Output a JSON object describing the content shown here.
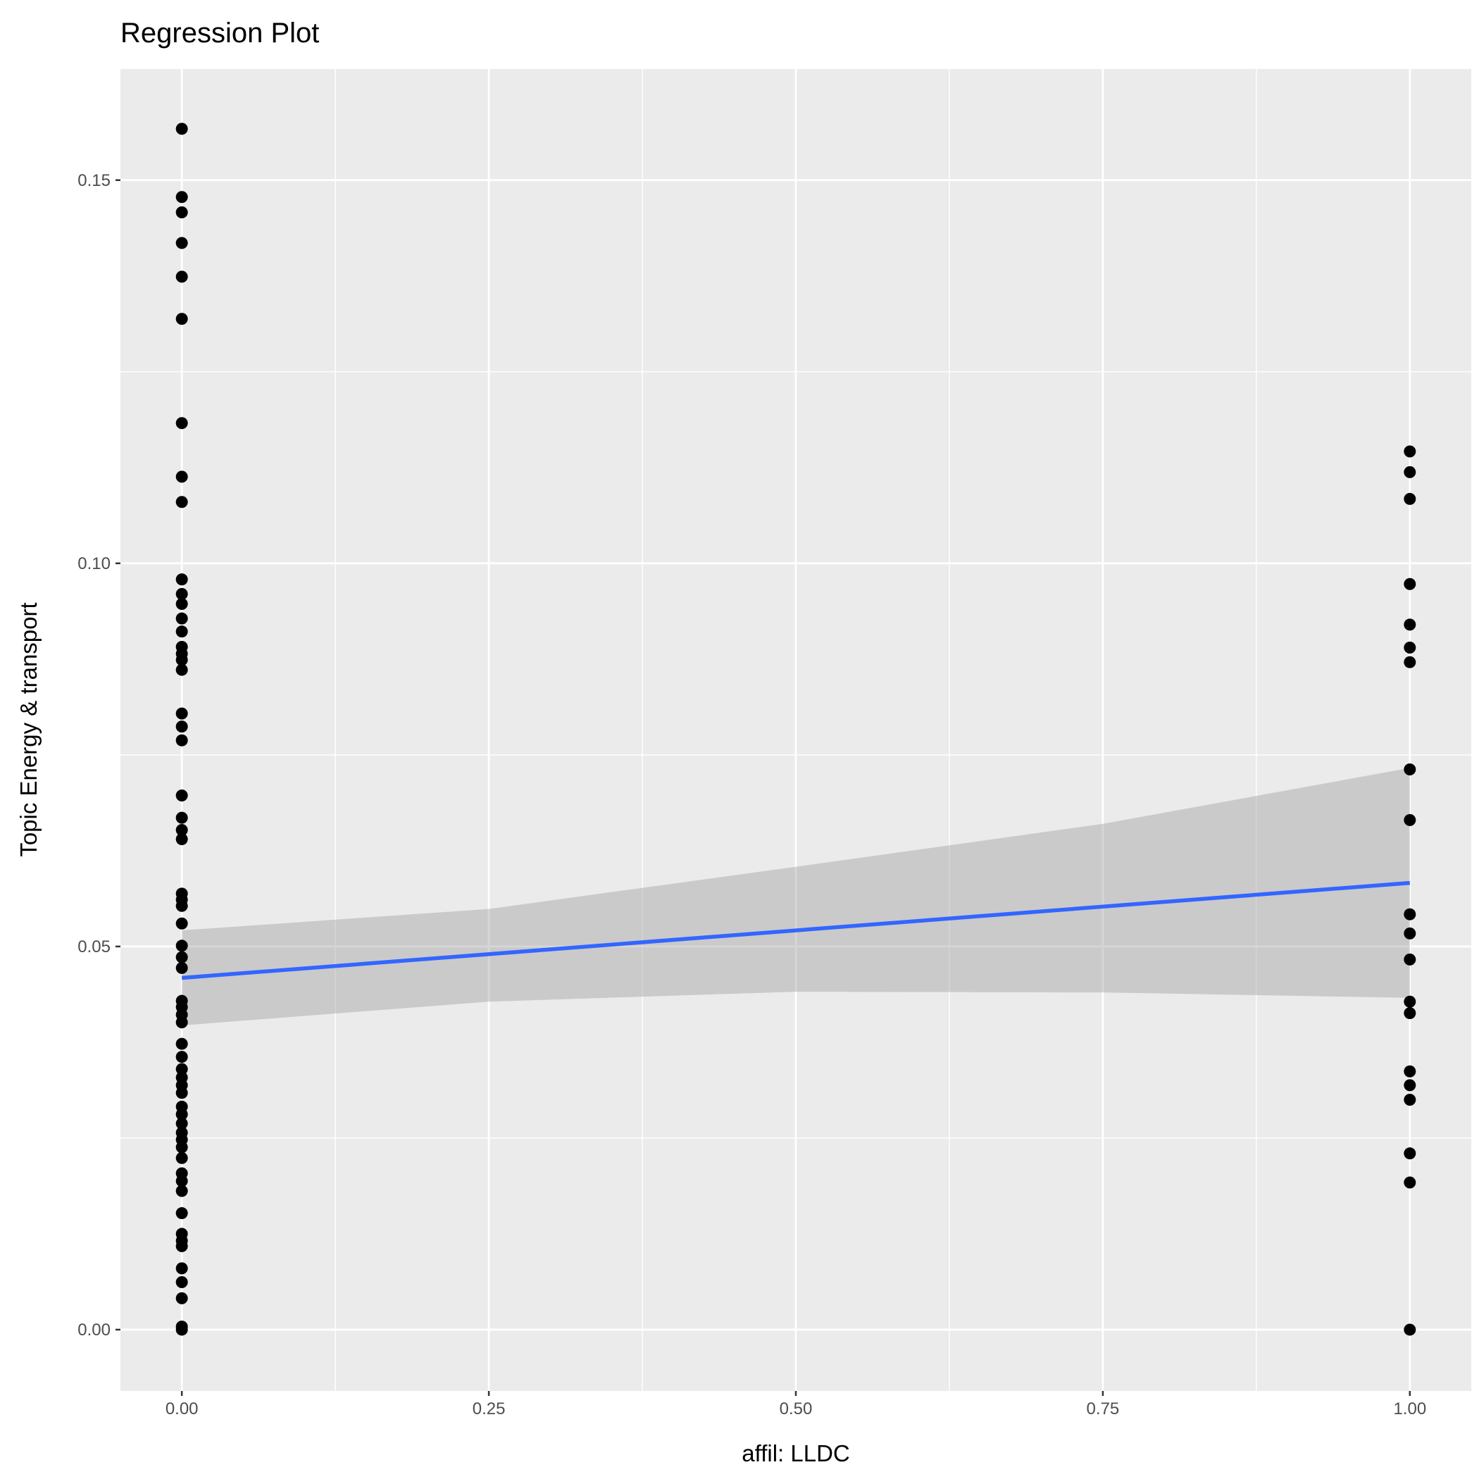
{
  "chart_data": {
    "type": "scatter",
    "title": "Regression Plot",
    "xlabel": "affil: LLDC",
    "ylabel": "Topic Energy & transport",
    "xlim": [
      -0.05,
      1.05
    ],
    "ylim": [
      -0.008,
      0.1645
    ],
    "x_ticks": [
      0,
      0.25,
      0.5,
      0.75,
      1
    ],
    "x_tick_labels": [
      "0.00",
      "0.25",
      "0.50",
      "0.75",
      "1.00"
    ],
    "y_ticks": [
      0,
      0.05,
      0.1,
      0.15
    ],
    "y_tick_labels": [
      "0.00",
      "0.05",
      "0.10",
      "0.15"
    ],
    "grid": true,
    "legend": "none",
    "colors": {
      "panel": "#ebebeb",
      "grid": "#ffffff",
      "points": "#000000",
      "line": "#3366ff",
      "ribbon": "#999999"
    },
    "series": [
      {
        "name": "affil 0",
        "x": 0,
        "y": [
          0.1567,
          0.1478,
          0.1458,
          0.1418,
          0.1374,
          0.1319,
          0.1183,
          0.1113,
          0.108,
          0.0979,
          0.096,
          0.0947,
          0.0928,
          0.0911,
          0.0891,
          0.0882,
          0.0874,
          0.0861,
          0.0804,
          0.0787,
          0.0769,
          0.0697,
          0.0668,
          0.0652,
          0.064,
          0.0569,
          0.0561,
          0.0553,
          0.053,
          0.0501,
          0.0486,
          0.0472,
          0.0429,
          0.0421,
          0.0411,
          0.0401,
          0.0373,
          0.0356,
          0.034,
          0.0329,
          0.0319,
          0.0309,
          0.0291,
          0.0281,
          0.0269,
          0.0257,
          0.0248,
          0.0238,
          0.0224,
          0.0204,
          0.0194,
          0.0181,
          0.0152,
          0.0125,
          0.0116,
          0.0109,
          0.008,
          0.0062,
          0.0041,
          0.0004,
          0.0
        ]
      },
      {
        "name": "affil 1",
        "x": 1,
        "y": [
          0.1146,
          0.1119,
          0.1084,
          0.0973,
          0.092,
          0.089,
          0.0871,
          0.0731,
          0.0665,
          0.0542,
          0.0517,
          0.0483,
          0.0428,
          0.0413,
          0.0337,
          0.0319,
          0.03,
          0.023,
          0.0192,
          0.0
        ]
      }
    ],
    "regression": {
      "method": "lm",
      "x": [
        0,
        1
      ],
      "y": [
        0.0459,
        0.0583
      ],
      "ci_x": [
        0,
        0.25,
        0.5,
        0.75,
        1
      ],
      "ci_upper": [
        0.0521,
        0.0549,
        0.0604,
        0.066,
        0.0733
      ],
      "ci_lower": [
        0.0397,
        0.0428,
        0.0441,
        0.044,
        0.0433
      ]
    }
  }
}
